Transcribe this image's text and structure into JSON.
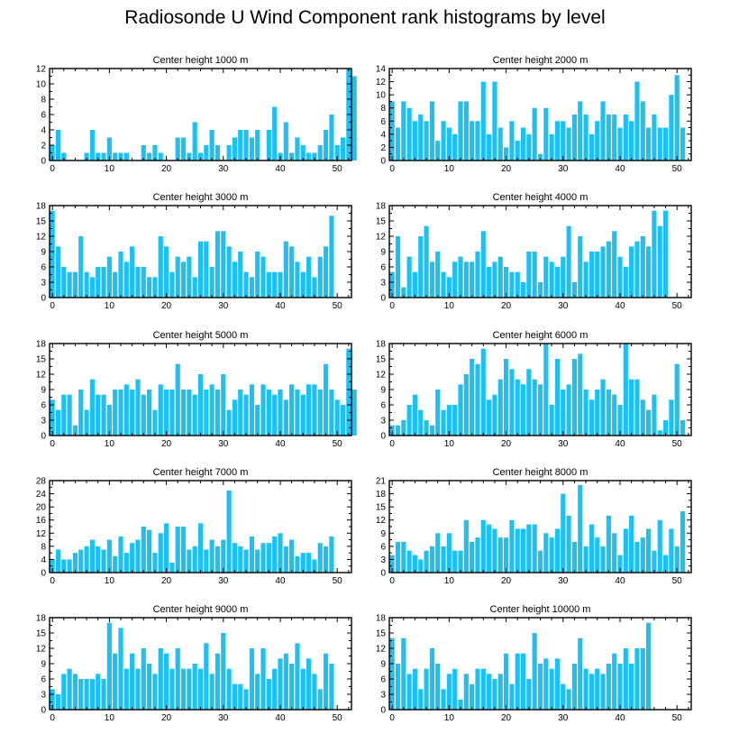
{
  "title": "Radiosonde U Wind Component rank histograms by level",
  "colors": {
    "bar": "#1ec0f2",
    "axis": "#000000"
  },
  "chart_data": [
    {
      "type": "bar",
      "title": "Center height 1000 m",
      "ylim": [
        0,
        12
      ],
      "yticks": [
        0,
        2,
        4,
        6,
        8,
        10,
        12
      ],
      "xlim": [
        -0.5,
        52.5
      ],
      "xticks": [
        0,
        10,
        20,
        30,
        40,
        50
      ],
      "values": [
        2,
        4,
        1,
        0,
        0,
        0,
        1,
        4,
        1,
        1,
        3,
        1,
        1,
        1,
        0,
        0,
        2,
        1,
        2,
        1,
        0,
        0,
        3,
        3,
        1,
        5,
        1,
        2,
        4,
        2,
        0,
        2,
        3,
        4,
        4,
        3,
        4,
        0,
        4,
        7,
        1,
        5,
        1,
        3,
        2,
        1,
        1,
        2,
        4,
        6,
        2,
        3,
        12,
        11
      ]
    },
    {
      "type": "bar",
      "title": "Center height 2000 m",
      "ylim": [
        0,
        14
      ],
      "yticks": [
        0,
        2,
        4,
        6,
        8,
        10,
        12,
        14
      ],
      "xlim": [
        -0.5,
        52.5
      ],
      "xticks": [
        0,
        10,
        20,
        30,
        40,
        50
      ],
      "values": [
        9,
        5,
        9,
        8,
        6,
        7,
        6,
        9,
        3,
        6,
        5,
        4,
        9,
        9,
        6,
        6,
        12,
        4,
        12,
        5,
        2,
        6,
        3,
        5,
        4,
        8,
        1,
        8,
        4,
        6,
        6,
        5,
        7,
        9,
        7,
        4,
        6,
        9,
        7,
        7,
        5,
        7,
        6,
        12,
        9,
        5,
        7,
        5,
        5,
        10,
        13,
        5
      ]
    },
    {
      "type": "bar",
      "title": "Center height 3000 m",
      "ylim": [
        0,
        18
      ],
      "yticks": [
        0,
        3,
        6,
        9,
        12,
        15,
        18
      ],
      "xlim": [
        -0.5,
        52.5
      ],
      "xticks": [
        0,
        10,
        20,
        30,
        40,
        50
      ],
      "values": [
        17,
        10,
        6,
        5,
        5,
        12,
        5,
        4,
        6,
        6,
        8,
        5,
        9,
        7,
        10,
        6,
        6,
        4,
        4,
        12,
        10,
        5,
        8,
        7,
        8,
        4,
        11,
        11,
        6,
        13,
        13,
        10,
        7,
        9,
        5,
        4,
        9,
        8,
        5,
        5,
        5,
        11,
        10,
        7,
        5,
        8,
        4,
        8,
        10,
        16
      ]
    },
    {
      "type": "bar",
      "title": "Center height 4000 m",
      "ylim": [
        0,
        18
      ],
      "yticks": [
        0,
        3,
        6,
        9,
        12,
        15,
        18
      ],
      "xlim": [
        -0.5,
        52.5
      ],
      "xticks": [
        0,
        10,
        20,
        30,
        40,
        50
      ],
      "values": [
        5,
        12,
        2,
        8,
        5,
        12,
        14,
        7,
        9,
        5,
        4,
        7,
        8,
        7,
        7,
        9,
        13,
        6,
        7,
        8,
        6,
        5,
        5,
        3,
        9,
        9,
        3,
        8,
        7,
        6,
        8,
        14,
        3,
        12,
        7,
        9,
        9,
        10,
        11,
        13,
        8,
        6,
        10,
        11,
        12,
        10,
        17,
        14,
        17
      ]
    },
    {
      "type": "bar",
      "title": "Center height 5000 m",
      "ylim": [
        0,
        18
      ],
      "yticks": [
        0,
        3,
        6,
        9,
        12,
        15,
        18
      ],
      "xlim": [
        -0.5,
        52.5
      ],
      "xticks": [
        0,
        10,
        20,
        30,
        40,
        50
      ],
      "values": [
        7,
        5,
        8,
        8,
        2,
        9,
        5,
        11,
        8,
        8,
        6,
        9,
        9,
        10,
        9,
        11,
        8,
        9,
        5,
        10,
        9,
        9,
        14,
        9,
        9,
        8,
        12,
        9,
        10,
        9,
        12,
        5,
        7,
        9,
        8,
        10,
        6,
        10,
        9,
        8,
        9,
        7,
        10,
        9,
        8,
        10,
        10,
        9,
        14,
        9,
        7,
        6,
        17,
        9
      ]
    },
    {
      "type": "bar",
      "title": "Center height 6000 m",
      "ylim": [
        0,
        18
      ],
      "yticks": [
        0,
        3,
        6,
        9,
        12,
        15,
        18
      ],
      "xlim": [
        -0.5,
        52.5
      ],
      "xticks": [
        0,
        10,
        20,
        30,
        40,
        50
      ],
      "values": [
        2,
        2,
        3,
        6,
        8,
        5,
        3,
        2,
        9,
        5,
        6,
        6,
        10,
        12,
        15,
        14,
        17,
        7,
        8,
        11,
        15,
        13,
        11,
        10,
        13,
        11,
        10,
        18,
        6,
        15,
        9,
        10,
        15,
        16,
        9,
        7,
        9,
        11,
        9,
        8,
        6,
        18,
        11,
        11,
        7,
        5,
        8,
        1,
        3,
        7,
        14,
        3
      ]
    },
    {
      "type": "bar",
      "title": "Center height 7000 m",
      "ylim": [
        0,
        28
      ],
      "yticks": [
        0,
        4,
        8,
        12,
        16,
        20,
        24,
        28
      ],
      "xlim": [
        -0.5,
        52.5
      ],
      "xticks": [
        0,
        10,
        20,
        30,
        40,
        50
      ],
      "values": [
        4,
        7,
        4,
        4,
        6,
        7,
        8,
        10,
        8,
        7,
        10,
        5,
        11,
        6,
        9,
        10,
        14,
        13,
        6,
        12,
        15,
        3,
        14,
        14,
        7,
        8,
        15,
        7,
        10,
        8,
        10,
        25,
        9,
        8,
        7,
        11,
        7,
        9,
        9,
        11,
        12,
        8,
        10,
        5,
        6,
        6,
        4,
        9,
        8,
        11
      ]
    },
    {
      "type": "bar",
      "title": "Center height 8000 m",
      "ylim": [
        0,
        21
      ],
      "yticks": [
        0,
        3,
        6,
        9,
        12,
        15,
        18,
        21
      ],
      "xlim": [
        -0.5,
        52.5
      ],
      "xticks": [
        0,
        10,
        20,
        30,
        40,
        50
      ],
      "values": [
        4,
        7,
        7,
        5,
        4,
        3,
        5,
        6,
        9,
        6,
        9,
        5,
        5,
        12,
        7,
        8,
        12,
        11,
        10,
        8,
        8,
        12,
        10,
        10,
        11,
        11,
        5,
        9,
        8,
        10,
        18,
        13,
        7,
        20,
        6,
        11,
        8,
        6,
        13,
        9,
        4,
        10,
        13,
        7,
        8,
        10,
        5,
        12,
        4,
        10,
        6,
        14
      ]
    },
    {
      "type": "bar",
      "title": "Center height 9000 m",
      "ylim": [
        0,
        18
      ],
      "yticks": [
        0,
        3,
        6,
        9,
        12,
        15,
        18
      ],
      "xlim": [
        -0.5,
        52.5
      ],
      "xticks": [
        0,
        10,
        20,
        30,
        40,
        50
      ],
      "values": [
        4,
        3,
        7,
        8,
        7,
        6,
        6,
        6,
        7,
        6,
        17,
        11,
        16,
        8,
        11,
        8,
        12,
        9,
        7,
        12,
        11,
        8,
        12,
        8,
        8,
        9,
        8,
        13,
        7,
        11,
        15,
        8,
        5,
        5,
        4,
        12,
        7,
        12,
        6,
        8,
        10,
        11,
        9,
        13,
        8,
        10,
        7,
        4,
        11,
        9
      ]
    },
    {
      "type": "bar",
      "title": "Center height 10000 m",
      "ylim": [
        0,
        18
      ],
      "yticks": [
        0,
        3,
        6,
        9,
        12,
        15,
        18
      ],
      "xlim": [
        -0.5,
        52.5
      ],
      "xticks": [
        0,
        10,
        20,
        30,
        40,
        50
      ],
      "values": [
        14,
        9,
        14,
        7,
        8,
        4,
        8,
        12,
        9,
        4,
        7,
        8,
        2,
        7,
        5,
        8,
        8,
        7,
        6,
        7,
        11,
        5,
        11,
        11,
        6,
        15,
        9,
        10,
        8,
        10,
        5,
        4,
        9,
        14,
        8,
        7,
        8,
        7,
        9,
        11,
        9,
        12,
        9,
        12,
        12,
        17
      ]
    }
  ]
}
